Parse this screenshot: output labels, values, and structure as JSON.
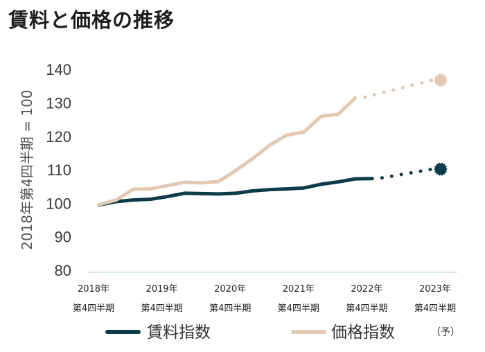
{
  "title": "賃料と価格の推移",
  "chart_data": {
    "type": "line",
    "title": "賃料と価格の推移",
    "ylabel": "2018年第4四半期 = 100",
    "ylim": [
      80,
      140
    ],
    "yticks": [
      80,
      90,
      100,
      110,
      120,
      130,
      140
    ],
    "grid": false,
    "categories": [
      {
        "year": "2018年",
        "quarter": "第4四半期"
      },
      {
        "year": "2019年",
        "quarter": "第4四半期"
      },
      {
        "year": "2020年",
        "quarter": "第4四半期"
      },
      {
        "year": "2021年",
        "quarter": "第4四半期"
      },
      {
        "year": "2022年",
        "quarter": "第4四半期"
      },
      {
        "year": "2023年",
        "quarter": "第4四半期"
      }
    ],
    "forecast_note": "（予）",
    "series": [
      {
        "name": "賃料指数",
        "color": "#0d3b4a",
        "x": [
          0,
          0.25,
          0.5,
          0.75,
          1,
          1.25,
          1.5,
          1.75,
          2,
          2.25,
          2.5,
          2.75,
          3,
          3.25,
          3.5,
          3.75,
          4
        ],
        "values": [
          99.5,
          100.5,
          101,
          101.2,
          102,
          103,
          102.9,
          102.8,
          103,
          103.7,
          104.1,
          104.3,
          104.6,
          105.7,
          106.4,
          107.3,
          107.4
        ],
        "forecast": {
          "x": [
            4,
            5
          ],
          "values": [
            107.4,
            110.2
          ]
        }
      },
      {
        "name": "価格指数",
        "color": "#e3c9b2",
        "x": [
          0,
          0.25,
          0.5,
          0.75,
          1,
          1.25,
          1.5,
          1.75,
          2,
          2.25,
          2.5,
          2.75,
          3,
          3.25,
          3.5,
          3.75
        ],
        "values": [
          99.6,
          101,
          104.2,
          104.3,
          105.3,
          106.3,
          106.1,
          106.5,
          109.8,
          113.4,
          117.4,
          120.4,
          121.3,
          126,
          126.6,
          131.5
        ],
        "forecast": {
          "x": [
            3.75,
            5
          ],
          "values": [
            131.5,
            136.8
          ]
        }
      }
    ]
  }
}
